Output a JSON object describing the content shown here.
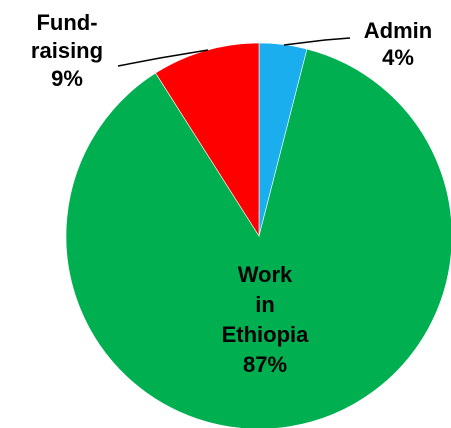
{
  "chart_data": {
    "type": "pie",
    "title": "",
    "start_angle_deg": 0,
    "direction": "clockwise",
    "slices": [
      {
        "label_lines": [
          "Admin",
          "4%"
        ],
        "value": 4,
        "color": "#1aaeef"
      },
      {
        "label_lines": [
          "Work",
          "in",
          "Ethiopia",
          "87%"
        ],
        "value": 87,
        "color": "#00b050"
      },
      {
        "label_lines": [
          "Fund-",
          "raising",
          "9%"
        ],
        "value": 9,
        "color": "#ff0000"
      }
    ],
    "legend": "none"
  }
}
